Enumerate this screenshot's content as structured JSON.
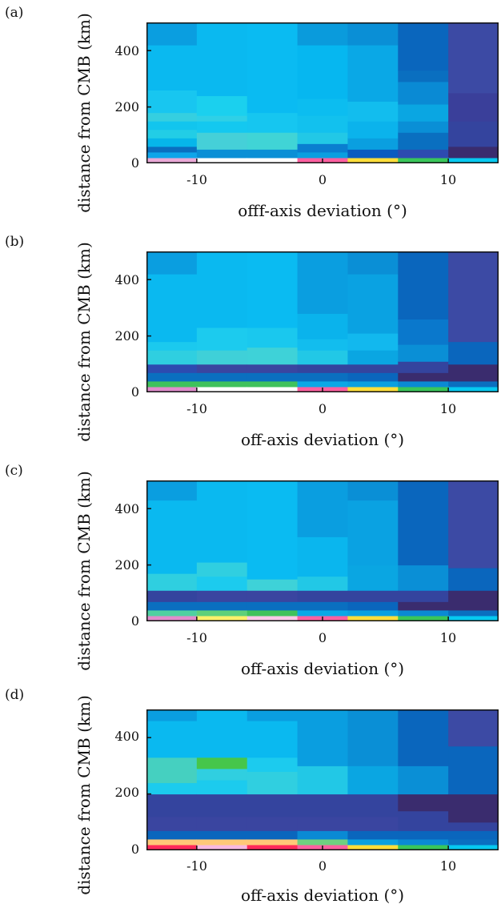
{
  "chart_data": [
    {
      "type": "heatmap",
      "panel_label": "(a)",
      "xlabel": "offf-axis deviation (°)",
      "ylabel": "distance from CMB (km)",
      "xlim": [
        -14,
        14
      ],
      "ylim": [
        0,
        500
      ],
      "x_ticks": [
        "-10",
        "0",
        "10"
      ],
      "y_ticks": [
        "0",
        "200",
        "400"
      ],
      "column_edges": [
        -14,
        -10,
        -6,
        -2,
        2,
        6,
        10,
        14
      ],
      "columns": [
        [
          [
            0,
            20,
            "#e9a8d6"
          ],
          [
            20,
            40,
            "#0ea5ea"
          ],
          [
            40,
            60,
            "#0a6fc0"
          ],
          [
            60,
            90,
            "#06b6ea"
          ],
          [
            90,
            120,
            "#22cde6"
          ],
          [
            120,
            150,
            "#12c5ee"
          ],
          [
            150,
            180,
            "#35cfe0"
          ],
          [
            180,
            260,
            "#18c6f0"
          ],
          [
            260,
            420,
            "#0ab9f0"
          ],
          [
            420,
            500,
            "#0a9ee0"
          ]
        ],
        [
          [
            0,
            20,
            "#ffffff"
          ],
          [
            20,
            50,
            "#0a8fd6"
          ],
          [
            50,
            110,
            "#45d0d8"
          ],
          [
            110,
            150,
            "#14c8f0"
          ],
          [
            150,
            170,
            "#2fd0e6"
          ],
          [
            170,
            240,
            "#1bd0ee"
          ],
          [
            240,
            500,
            "#0ab9f0"
          ]
        ],
        [
          [
            0,
            20,
            "#ffffff"
          ],
          [
            20,
            50,
            "#0a8fd6"
          ],
          [
            50,
            110,
            "#40d4d6"
          ],
          [
            110,
            180,
            "#16c6f0"
          ],
          [
            180,
            500,
            "#0abbf2"
          ]
        ],
        [
          [
            0,
            20,
            "#ff5fa0"
          ],
          [
            20,
            40,
            "#0a9fe0"
          ],
          [
            40,
            70,
            "#0a7ed0"
          ],
          [
            70,
            110,
            "#22c8e6"
          ],
          [
            110,
            170,
            "#12c1ee"
          ],
          [
            170,
            230,
            "#0cbdf0"
          ],
          [
            230,
            420,
            "#06b7f0"
          ],
          [
            420,
            500,
            "#0a9bdc"
          ]
        ],
        [
          [
            0,
            20,
            "#ffde3a"
          ],
          [
            20,
            50,
            "#0a5cc0"
          ],
          [
            50,
            90,
            "#0a9fe0"
          ],
          [
            90,
            150,
            "#0bb3ec"
          ],
          [
            150,
            220,
            "#12bdee"
          ],
          [
            220,
            420,
            "#0aa8e6"
          ],
          [
            420,
            500,
            "#0a8fd6"
          ]
        ],
        [
          [
            0,
            20,
            "#39c65a"
          ],
          [
            20,
            50,
            "#2d4bb0"
          ],
          [
            50,
            110,
            "#0a6fc0"
          ],
          [
            110,
            150,
            "#0a8fd6"
          ],
          [
            150,
            210,
            "#0aa6e2"
          ],
          [
            210,
            290,
            "#0a8ad4"
          ],
          [
            290,
            330,
            "#0a6fc0"
          ],
          [
            330,
            500,
            "#0a66bd"
          ]
        ],
        [
          [
            0,
            20,
            "#06c9f0"
          ],
          [
            20,
            60,
            "#3a2c6e"
          ],
          [
            60,
            150,
            "#34449e"
          ],
          [
            150,
            250,
            "#3a3f9a"
          ],
          [
            250,
            500,
            "#3c4aa4"
          ]
        ]
      ]
    },
    {
      "type": "heatmap",
      "panel_label": "(b)",
      "xlabel": "off-axis deviation (°)",
      "ylabel": "distance from CMB (km)",
      "xlim": [
        -14,
        14
      ],
      "ylim": [
        0,
        500
      ],
      "x_ticks": [
        "-10",
        "0",
        "10"
      ],
      "y_ticks": [
        "0",
        "200",
        "400"
      ],
      "column_edges": [
        -14,
        -10,
        -6,
        -2,
        2,
        6,
        10,
        14
      ],
      "columns": [
        [
          [
            0,
            20,
            "#e08ccc"
          ],
          [
            20,
            40,
            "#3fc25c"
          ],
          [
            40,
            70,
            "#0a6fc0"
          ],
          [
            70,
            100,
            "#2d4bb0"
          ],
          [
            100,
            150,
            "#2fcfe0"
          ],
          [
            150,
            180,
            "#1bc9ee"
          ],
          [
            180,
            420,
            "#0ab9f0"
          ],
          [
            420,
            500,
            "#0a9ee0"
          ]
        ],
        [
          [
            0,
            20,
            "#ffffff"
          ],
          [
            20,
            40,
            "#3fc25c"
          ],
          [
            40,
            70,
            "#0a6fc0"
          ],
          [
            70,
            100,
            "#3a45a0"
          ],
          [
            100,
            150,
            "#3fd0d8"
          ],
          [
            150,
            230,
            "#1ccbee"
          ],
          [
            230,
            500,
            "#0ab9f0"
          ]
        ],
        [
          [
            0,
            20,
            "#ffffff"
          ],
          [
            20,
            40,
            "#3fc25c"
          ],
          [
            40,
            70,
            "#0a6fc0"
          ],
          [
            70,
            100,
            "#3a45a0"
          ],
          [
            100,
            160,
            "#3ed2d8"
          ],
          [
            160,
            230,
            "#1ac8ee"
          ],
          [
            230,
            500,
            "#0abbf2"
          ]
        ],
        [
          [
            0,
            20,
            "#ff5fa0"
          ],
          [
            20,
            40,
            "#0aa8e6"
          ],
          [
            40,
            70,
            "#0a6fc0"
          ],
          [
            70,
            100,
            "#34449e"
          ],
          [
            100,
            150,
            "#22c8e6"
          ],
          [
            150,
            190,
            "#12bdee"
          ],
          [
            190,
            280,
            "#0ab3ec"
          ],
          [
            280,
            500,
            "#0a9ee0"
          ]
        ],
        [
          [
            0,
            20,
            "#ffde3a"
          ],
          [
            20,
            40,
            "#0aa0e0"
          ],
          [
            40,
            70,
            "#0a66bd"
          ],
          [
            70,
            100,
            "#34449e"
          ],
          [
            100,
            150,
            "#0aa6e2"
          ],
          [
            150,
            210,
            "#12b8ee"
          ],
          [
            210,
            420,
            "#0aa2e2"
          ],
          [
            420,
            500,
            "#0a8fd6"
          ]
        ],
        [
          [
            0,
            20,
            "#39c65a"
          ],
          [
            20,
            40,
            "#0a8ad4"
          ],
          [
            40,
            70,
            "#3a2c6e"
          ],
          [
            70,
            110,
            "#34449e"
          ],
          [
            110,
            170,
            "#0a8fd6"
          ],
          [
            170,
            260,
            "#0a78cc"
          ],
          [
            260,
            500,
            "#0a66bd"
          ]
        ],
        [
          [
            0,
            20,
            "#06c9f0"
          ],
          [
            20,
            40,
            "#0a6fc0"
          ],
          [
            40,
            100,
            "#3a2c6e"
          ],
          [
            100,
            180,
            "#0a66bd"
          ],
          [
            180,
            500,
            "#3c4aa4"
          ]
        ]
      ]
    },
    {
      "type": "heatmap",
      "panel_label": "(c)",
      "xlabel": "off-axis deviation (°)",
      "ylabel": "distance from CMB (km)",
      "xlim": [
        -14,
        14
      ],
      "ylim": [
        0,
        500
      ],
      "x_ticks": [
        "-10",
        "0",
        "10"
      ],
      "y_ticks": [
        "0",
        "200",
        "400"
      ],
      "column_edges": [
        -14,
        -10,
        -6,
        -2,
        2,
        6,
        10,
        14
      ],
      "columns": [
        [
          [
            0,
            20,
            "#e08ccc"
          ],
          [
            20,
            40,
            "#4fd0a0"
          ],
          [
            40,
            70,
            "#0a6fc0"
          ],
          [
            70,
            110,
            "#34449e"
          ],
          [
            110,
            170,
            "#2fcfe0"
          ],
          [
            170,
            430,
            "#0ab9f0"
          ],
          [
            430,
            500,
            "#0a9ee0"
          ]
        ],
        [
          [
            0,
            20,
            "#fff06a"
          ],
          [
            20,
            40,
            "#5fd07a"
          ],
          [
            40,
            70,
            "#0a6fc0"
          ],
          [
            70,
            110,
            "#3a45a0"
          ],
          [
            110,
            160,
            "#1ccbee"
          ],
          [
            160,
            210,
            "#30cfe0"
          ],
          [
            210,
            500,
            "#0ab9f0"
          ]
        ],
        [
          [
            0,
            20,
            "#f8c8e8"
          ],
          [
            20,
            40,
            "#3fc25c"
          ],
          [
            40,
            70,
            "#0a6fc0"
          ],
          [
            70,
            110,
            "#3a45a0"
          ],
          [
            110,
            150,
            "#3ed2d8"
          ],
          [
            150,
            500,
            "#0abbf2"
          ]
        ],
        [
          [
            0,
            20,
            "#ff5fa0"
          ],
          [
            20,
            40,
            "#0aa8e6"
          ],
          [
            40,
            70,
            "#0a6fc0"
          ],
          [
            70,
            110,
            "#34449e"
          ],
          [
            110,
            160,
            "#22c8e6"
          ],
          [
            160,
            300,
            "#0ab6ee"
          ],
          [
            300,
            500,
            "#0a9ee0"
          ]
        ],
        [
          [
            0,
            20,
            "#ffde3a"
          ],
          [
            20,
            40,
            "#0aa0e0"
          ],
          [
            40,
            70,
            "#0a66bd"
          ],
          [
            70,
            110,
            "#34449e"
          ],
          [
            110,
            200,
            "#0aa6e2"
          ],
          [
            200,
            430,
            "#0aa2e2"
          ],
          [
            430,
            500,
            "#0a8fd6"
          ]
        ],
        [
          [
            0,
            20,
            "#39c65a"
          ],
          [
            20,
            40,
            "#0a8ad4"
          ],
          [
            40,
            70,
            "#3a2c6e"
          ],
          [
            70,
            110,
            "#34449e"
          ],
          [
            110,
            200,
            "#0a8fd6"
          ],
          [
            200,
            500,
            "#0a66bd"
          ]
        ],
        [
          [
            0,
            20,
            "#06c9f0"
          ],
          [
            20,
            40,
            "#0a6fc0"
          ],
          [
            40,
            110,
            "#3a2c6e"
          ],
          [
            110,
            190,
            "#0a66bd"
          ],
          [
            190,
            500,
            "#3c4aa4"
          ]
        ]
      ]
    },
    {
      "type": "heatmap",
      "panel_label": "(d)",
      "xlabel": "off-axis deviation (°)",
      "ylabel": "distance from CMB (km)",
      "xlim": [
        -14,
        14
      ],
      "ylim": [
        0,
        500
      ],
      "x_ticks": [
        "-10",
        "0",
        "10"
      ],
      "y_ticks": [
        "0",
        "200",
        "400"
      ],
      "column_edges": [
        -14,
        -10,
        -6,
        -2,
        2,
        6,
        10,
        14
      ],
      "columns": [
        [
          [
            0,
            20,
            "#ff2a5a"
          ],
          [
            20,
            40,
            "#ffc878"
          ],
          [
            40,
            70,
            "#0a66bd"
          ],
          [
            70,
            120,
            "#3a45a0"
          ],
          [
            120,
            200,
            "#34449e"
          ],
          [
            200,
            240,
            "#1ccbee"
          ],
          [
            240,
            330,
            "#45d0c0"
          ],
          [
            330,
            460,
            "#0ab9f0"
          ],
          [
            460,
            500,
            "#0a9ee0"
          ]
        ],
        [
          [
            0,
            20,
            "#f8b8e0"
          ],
          [
            20,
            40,
            "#ffc878"
          ],
          [
            40,
            70,
            "#0a66bd"
          ],
          [
            70,
            120,
            "#3a45a0"
          ],
          [
            120,
            200,
            "#34449e"
          ],
          [
            200,
            250,
            "#1ccbee"
          ],
          [
            250,
            290,
            "#30cfe0"
          ],
          [
            290,
            330,
            "#46c64a"
          ],
          [
            330,
            500,
            "#0ab9f0"
          ]
        ],
        [
          [
            0,
            20,
            "#ff2a5a"
          ],
          [
            20,
            40,
            "#ffc878"
          ],
          [
            40,
            70,
            "#0a66bd"
          ],
          [
            70,
            120,
            "#3a45a0"
          ],
          [
            120,
            200,
            "#34449e"
          ],
          [
            200,
            280,
            "#30cfe0"
          ],
          [
            280,
            330,
            "#1ccbee"
          ],
          [
            330,
            460,
            "#0ab9f0"
          ],
          [
            460,
            500,
            "#0a9ee0"
          ]
        ],
        [
          [
            0,
            20,
            "#ff5fa0"
          ],
          [
            20,
            40,
            "#6fd080"
          ],
          [
            40,
            70,
            "#0a8ad4"
          ],
          [
            70,
            120,
            "#3a45a0"
          ],
          [
            120,
            200,
            "#34449e"
          ],
          [
            200,
            300,
            "#22c8e6"
          ],
          [
            300,
            500,
            "#0a9ee0"
          ]
        ],
        [
          [
            0,
            20,
            "#ffde3a"
          ],
          [
            20,
            40,
            "#0aa0e0"
          ],
          [
            40,
            70,
            "#0a66bd"
          ],
          [
            70,
            120,
            "#3a45a0"
          ],
          [
            120,
            200,
            "#34449e"
          ],
          [
            200,
            300,
            "#0aa6e2"
          ],
          [
            300,
            500,
            "#0a8fd6"
          ]
        ],
        [
          [
            0,
            20,
            "#39c65a"
          ],
          [
            20,
            40,
            "#0a8ad4"
          ],
          [
            40,
            70,
            "#0a66bd"
          ],
          [
            70,
            140,
            "#34449e"
          ],
          [
            140,
            200,
            "#3a2c6e"
          ],
          [
            200,
            300,
            "#0a8fd6"
          ],
          [
            300,
            500,
            "#0a66bd"
          ]
        ],
        [
          [
            0,
            20,
            "#06c9f0"
          ],
          [
            20,
            40,
            "#0a6fc0"
          ],
          [
            40,
            70,
            "#0a66bd"
          ],
          [
            70,
            100,
            "#34449e"
          ],
          [
            100,
            200,
            "#3a2c6e"
          ],
          [
            200,
            370,
            "#0a66bd"
          ],
          [
            370,
            500,
            "#3c4aa4"
          ]
        ]
      ]
    }
  ]
}
